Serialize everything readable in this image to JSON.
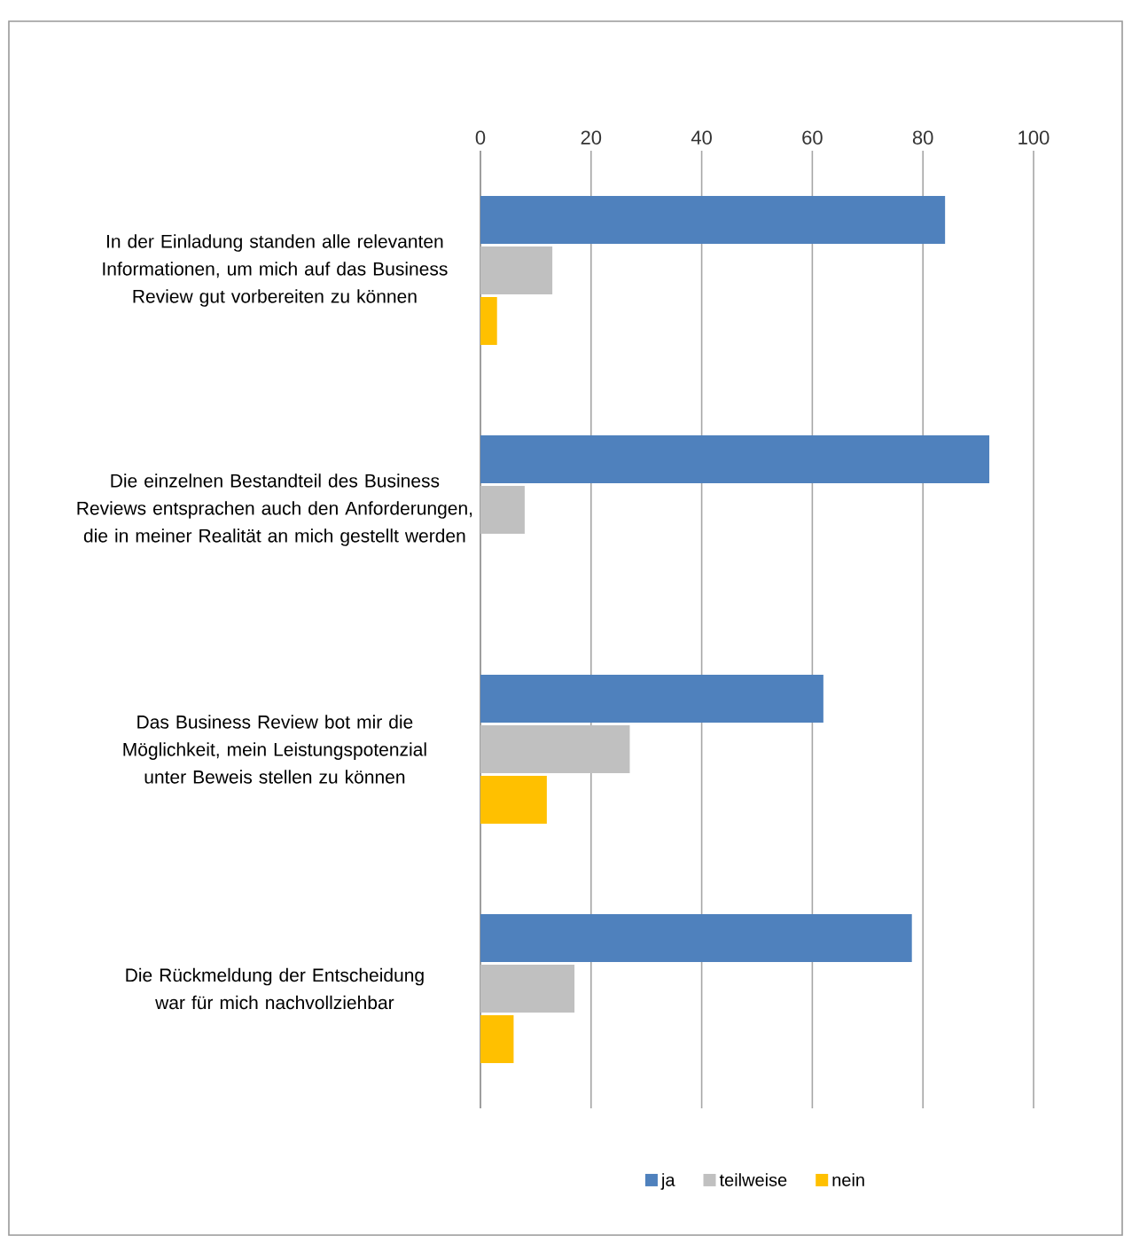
{
  "chart_data": {
    "type": "bar",
    "orientation": "horizontal",
    "categories": [
      "In der Einladung standen alle relevanten Informationen, um mich auf das Business Review gut vorbereiten zu  können",
      "Die einzelnen Bestandteil des Business Reviews entsprachen auch den Anforderungen, die in meiner Realität an mich gestellt werden",
      "Das Business Review bot mir die Möglichkeit, mein Leistungspotenzial unter Beweis stellen zu können",
      "Die Rückmeldung der Entscheidung war für mich nachvollziehbar"
    ],
    "series": [
      {
        "name": "ja",
        "color": "#4f81bd",
        "values": [
          84,
          92,
          62,
          78
        ]
      },
      {
        "name": "teilweise",
        "color": "#c0c0c0",
        "values": [
          13,
          8,
          27,
          17
        ]
      },
      {
        "name": "nein",
        "color": "#ffc000",
        "values": [
          3,
          0,
          12,
          6
        ]
      }
    ],
    "xlim": [
      0,
      100
    ],
    "xticks": [
      0,
      20,
      40,
      60,
      80,
      100
    ],
    "grid": "x",
    "legend": "bottom"
  }
}
